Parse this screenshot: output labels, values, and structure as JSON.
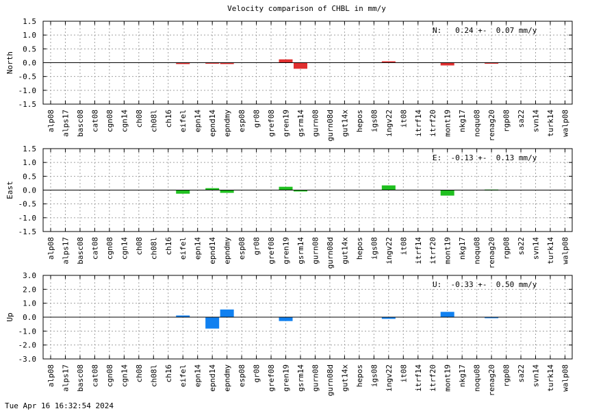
{
  "title": "Velocity comparison of CHBL in mm/y",
  "timestamp": "Tue Apr 16 16:32:54 2024",
  "colors": {
    "north": "#e03030",
    "east": "#20c020",
    "up": "#1080f0"
  },
  "chart_data": [
    {
      "type": "bar",
      "ylabel": "North",
      "ylim": [
        -1.5,
        1.5
      ],
      "yticks": [
        "1.5",
        "1.0",
        "0.5",
        "0.0",
        "-0.5",
        "-1.0",
        "-1.5"
      ],
      "yticks_values": [
        1.5,
        1.0,
        0.5,
        0.0,
        -0.5,
        -1.0,
        -1.5
      ],
      "annotation": "N:   0.24 +-  0.07 mm/y",
      "grid": true,
      "categories": [
        "alp08",
        "alps17",
        "basc08",
        "cat08",
        "cgn08",
        "cgn14",
        "ch08",
        "ch08l",
        "ch16",
        "eifel",
        "epn14",
        "epnd14",
        "epndmy",
        "esp08",
        "gr08",
        "gref08",
        "gren19",
        "gsrm14",
        "gurn08",
        "gurn08d",
        "gut14x",
        "hepos",
        "igs08",
        "ingv22",
        "it08",
        "itrf14",
        "itrf20",
        "mont19",
        "nkg17",
        "noqu08",
        "renag20",
        "rgp08",
        "sa22",
        "svn14",
        "turk14",
        "walp08"
      ],
      "values": [
        0,
        0,
        0,
        0,
        0,
        0,
        0,
        0,
        0,
        -0.05,
        0,
        -0.03,
        -0.05,
        0,
        0,
        0,
        0.12,
        -0.22,
        0,
        0,
        0,
        0,
        0,
        0.05,
        0,
        0,
        0,
        -0.1,
        0,
        0,
        -0.03,
        0,
        0,
        0,
        0,
        0
      ]
    },
    {
      "type": "bar",
      "ylabel": "East",
      "ylim": [
        -1.5,
        1.5
      ],
      "yticks": [
        "1.5",
        "1.0",
        "0.5",
        "0.0",
        "-0.5",
        "-1.0",
        "-1.5"
      ],
      "yticks_values": [
        1.5,
        1.0,
        0.5,
        0.0,
        -0.5,
        -1.0,
        -1.5
      ],
      "annotation": "E:  -0.13 +-  0.13 mm/y",
      "grid": true,
      "categories": [
        "alp08",
        "alps17",
        "basc08",
        "cat08",
        "cgn08",
        "cgn14",
        "ch08",
        "ch08l",
        "ch16",
        "eifel",
        "epn14",
        "epnd14",
        "epndmy",
        "esp08",
        "gr08",
        "gref08",
        "gren19",
        "gsrm14",
        "gurn08",
        "gurn08d",
        "gut14x",
        "hepos",
        "igs08",
        "ingv22",
        "it08",
        "itrf14",
        "itrf20",
        "mont19",
        "nkg17",
        "noqu08",
        "renag20",
        "rgp08",
        "sa22",
        "svn14",
        "turk14",
        "walp08"
      ],
      "values": [
        0,
        0,
        0,
        0,
        0,
        0,
        0,
        0,
        0,
        -0.13,
        0,
        0.07,
        -0.1,
        0,
        0,
        0,
        0.12,
        -0.05,
        0,
        0,
        0,
        0,
        0,
        0.17,
        0,
        0,
        0,
        -0.2,
        0,
        0,
        0.02,
        0,
        0,
        0,
        0,
        0
      ]
    },
    {
      "type": "bar",
      "ylabel": "Up",
      "ylim": [
        -3.0,
        3.0
      ],
      "yticks": [
        "3.0",
        "2.0",
        "1.0",
        "0.0",
        "-1.0",
        "-2.0",
        "-3.0"
      ],
      "yticks_values": [
        3.0,
        2.0,
        1.0,
        0.0,
        -1.0,
        -2.0,
        -3.0
      ],
      "annotation": "U:  -0.33 +-  0.50 mm/y",
      "grid": true,
      "categories": [
        "alp08",
        "alps17",
        "basc08",
        "cat08",
        "cgn08",
        "cgn14",
        "ch08",
        "ch08l",
        "ch16",
        "eifel",
        "epn14",
        "epnd14",
        "epndmy",
        "esp08",
        "gr08",
        "gref08",
        "gren19",
        "gsrm14",
        "gurn08",
        "gurn08d",
        "gut14x",
        "hepos",
        "igs08",
        "ingv22",
        "it08",
        "itrf14",
        "itrf20",
        "mont19",
        "nkg17",
        "noqu08",
        "renag20",
        "rgp08",
        "sa22",
        "svn14",
        "turk14",
        "walp08"
      ],
      "values": [
        0,
        0,
        0,
        0,
        0,
        0,
        0,
        0,
        0,
        0.12,
        0,
        -0.82,
        0.55,
        0,
        0,
        0,
        -0.28,
        0,
        0,
        0,
        0,
        0,
        0,
        -0.12,
        0,
        0,
        0,
        0.38,
        0,
        0,
        -0.05,
        0,
        0,
        0,
        0,
        0
      ]
    }
  ]
}
